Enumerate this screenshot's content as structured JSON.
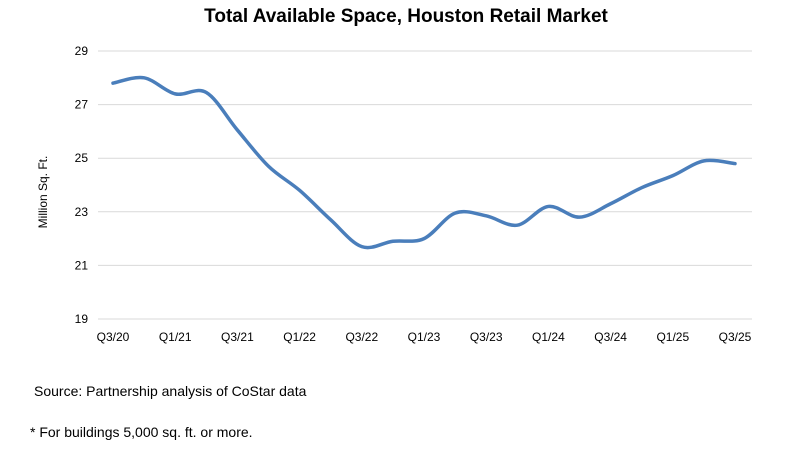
{
  "chart_data": {
    "type": "line",
    "title": "Total Available Space, Houston Retail Market",
    "xlabel": "",
    "ylabel": "Million Sq. Ft.",
    "ylim": [
      19,
      29
    ],
    "yticks": [
      19,
      21,
      23,
      25,
      27,
      29
    ],
    "grid": true,
    "x": [
      "Q3/20",
      "Q4/20",
      "Q1/21",
      "Q2/21",
      "Q3/21",
      "Q4/21",
      "Q1/22",
      "Q2/22",
      "Q3/22",
      "Q4/22",
      "Q1/23",
      "Q2/23",
      "Q3/23",
      "Q4/23",
      "Q1/24",
      "Q2/24",
      "Q3/24",
      "Q4/24",
      "Q1/25",
      "Q2/25",
      "Q3/25"
    ],
    "xticks": [
      "Q3/20",
      "Q1/21",
      "Q3/21",
      "Q1/22",
      "Q3/22",
      "Q1/23",
      "Q3/23",
      "Q1/24",
      "Q3/24",
      "Q1/25",
      "Q3/25"
    ],
    "series": [
      {
        "name": "Total Available Space",
        "color": "#4a7ebb",
        "values": [
          27.8,
          28.0,
          27.4,
          27.45,
          26.05,
          24.7,
          23.8,
          22.7,
          21.7,
          21.9,
          22.0,
          22.95,
          22.85,
          22.5,
          23.2,
          22.8,
          23.3,
          23.9,
          24.35,
          24.9,
          24.8
        ]
      }
    ]
  },
  "footer": {
    "source": "Source: Partnership analysis of CoStar data",
    "note": "* For buildings 5,000 sq. ft. or more."
  }
}
